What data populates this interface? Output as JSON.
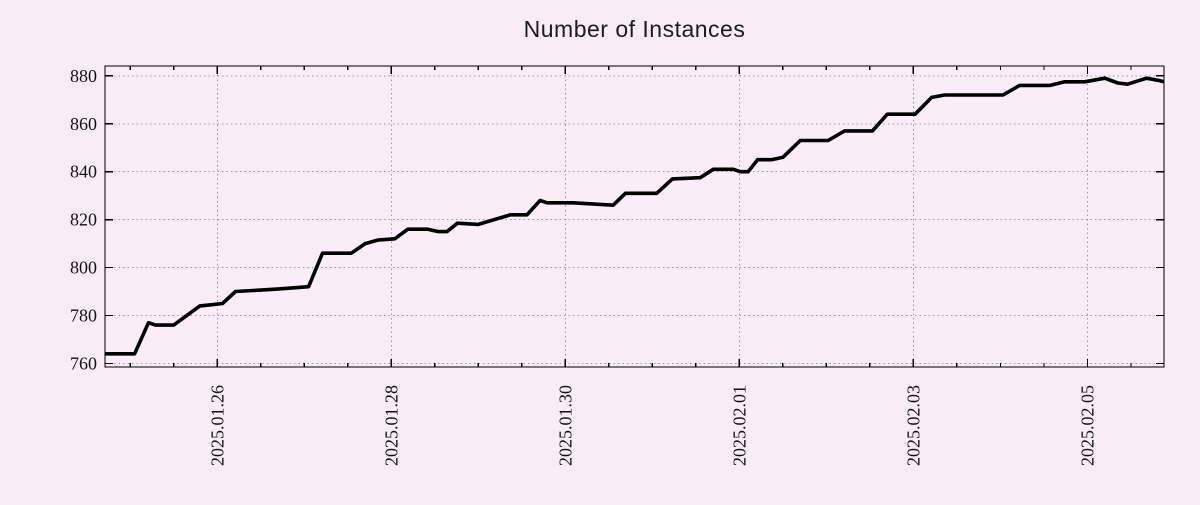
{
  "chart_data": {
    "type": "line",
    "title": "Number of Instances",
    "xlabel": "",
    "ylabel": "",
    "legend": "none",
    "grid": "dotted",
    "colors": {
      "background": "#f9edf8",
      "grid": "#9b9b9b",
      "axis": "#000000",
      "line": "#000000",
      "text": "#111111"
    },
    "x_axis": {
      "unit": "days_from_2025.01.26",
      "range": [
        -1.29,
        10.88
      ],
      "major_ticks": [
        {
          "t": 0,
          "label": "2025.01.26"
        },
        {
          "t": 2,
          "label": "2025.01.28"
        },
        {
          "t": 4,
          "label": "2025.01.30"
        },
        {
          "t": 6,
          "label": "2025.02.01"
        },
        {
          "t": 8,
          "label": "2025.02.03"
        },
        {
          "t": 10,
          "label": "2025.02.05"
        }
      ],
      "minor_tick_step": 0.5
    },
    "y_axis": {
      "range": [
        758.5,
        884.1
      ],
      "major_ticks": [
        760,
        780,
        800,
        820,
        840,
        860,
        880
      ]
    },
    "series": [
      {
        "name": "instances",
        "color": "#000000",
        "points": [
          [
            -1.29,
            764
          ],
          [
            -0.95,
            764
          ],
          [
            -0.79,
            777
          ],
          [
            -0.71,
            776
          ],
          [
            -0.5,
            776
          ],
          [
            -0.2,
            784
          ],
          [
            -0.06,
            784.5
          ],
          [
            0.06,
            785
          ],
          [
            0.21,
            790
          ],
          [
            0.69,
            791
          ],
          [
            1.05,
            792
          ],
          [
            1.21,
            806
          ],
          [
            1.54,
            806
          ],
          [
            1.7,
            810
          ],
          [
            1.85,
            811.5
          ],
          [
            2.04,
            812
          ],
          [
            2.19,
            816
          ],
          [
            2.42,
            816
          ],
          [
            2.54,
            815
          ],
          [
            2.64,
            815
          ],
          [
            2.76,
            818.5
          ],
          [
            3.0,
            818
          ],
          [
            3.37,
            822
          ],
          [
            3.56,
            822
          ],
          [
            3.71,
            828
          ],
          [
            3.79,
            827
          ],
          [
            4.09,
            827
          ],
          [
            4.55,
            826
          ],
          [
            4.69,
            831
          ],
          [
            5.05,
            831
          ],
          [
            5.23,
            837
          ],
          [
            5.55,
            837.5
          ],
          [
            5.7,
            841
          ],
          [
            5.93,
            841
          ],
          [
            6.01,
            840
          ],
          [
            6.1,
            840
          ],
          [
            6.21,
            845
          ],
          [
            6.37,
            845
          ],
          [
            6.5,
            846
          ],
          [
            6.7,
            853
          ],
          [
            7.02,
            853
          ],
          [
            7.21,
            857
          ],
          [
            7.53,
            857
          ],
          [
            7.7,
            864
          ],
          [
            8.02,
            864
          ],
          [
            8.21,
            871
          ],
          [
            8.36,
            872
          ],
          [
            9.03,
            872
          ],
          [
            9.22,
            876
          ],
          [
            9.57,
            876
          ],
          [
            9.74,
            877.5
          ],
          [
            9.97,
            877.5
          ],
          [
            10.2,
            879
          ],
          [
            10.35,
            877
          ],
          [
            10.46,
            876.5
          ],
          [
            10.68,
            879
          ],
          [
            10.83,
            878
          ],
          [
            10.88,
            877.5
          ]
        ]
      }
    ]
  }
}
